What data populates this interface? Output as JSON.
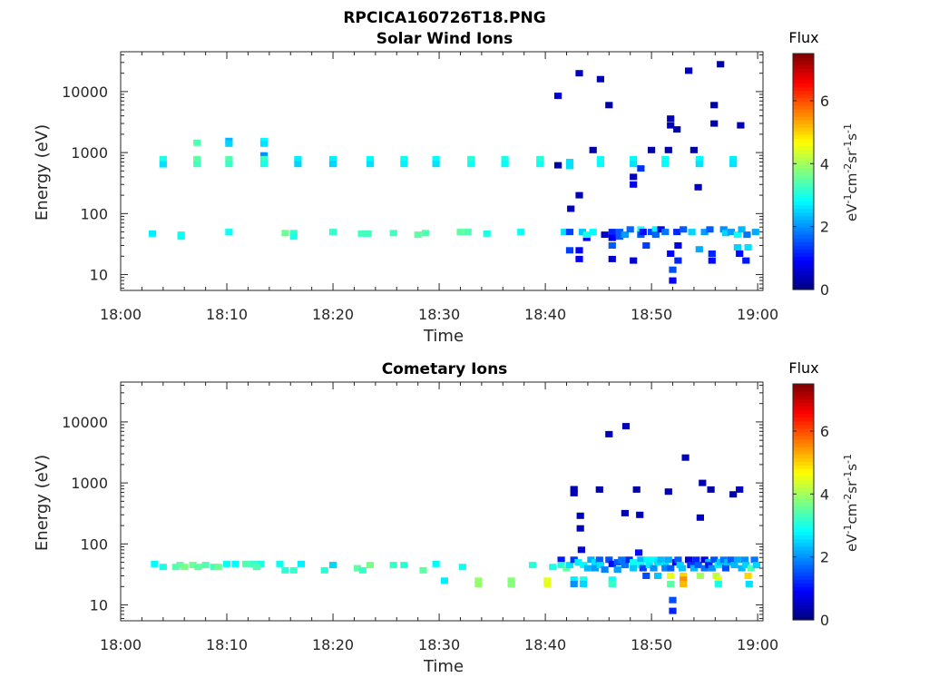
{
  "chart_data": [
    {
      "type": "heatmap",
      "title": "RPCICA160726T18.PNG",
      "subtitle": "Solar Wind Ions",
      "xlabel": "Time",
      "ylabel": "Energy (eV)",
      "x_ticks": [
        "18:00",
        "18:10",
        "18:20",
        "18:30",
        "18:40",
        "18:50",
        "19:00"
      ],
      "xlim_minutes": [
        0,
        60.5
      ],
      "y_scale": "log",
      "ylim": [
        5.5,
        45000
      ],
      "y_ticks": [
        "10",
        "100",
        "1000",
        "10000"
      ],
      "colorbar": {
        "title": "Flux",
        "label": "eV-1cm-2sr-1s-1",
        "range": [
          0,
          7.5
        ],
        "ticks": [
          "0",
          "2",
          "4",
          "6"
        ],
        "colormap": "jet"
      },
      "cells": [
        [
          3.0,
          47,
          2.7
        ],
        [
          5.7,
          45,
          2.9
        ],
        [
          5.7,
          42,
          2.9
        ],
        [
          4.0,
          780,
          3.0
        ],
        [
          4.0,
          640,
          2.6
        ],
        [
          7.2,
          1450,
          3.4
        ],
        [
          7.2,
          780,
          3.5
        ],
        [
          7.2,
          650,
          3.3
        ],
        [
          10.2,
          1550,
          2.3
        ],
        [
          10.2,
          1400,
          2.5
        ],
        [
          10.2,
          780,
          3.4
        ],
        [
          10.2,
          650,
          3.2
        ],
        [
          10.2,
          50,
          2.9
        ],
        [
          13.5,
          1550,
          2.8
        ],
        [
          13.5,
          1400,
          2.6
        ],
        [
          13.5,
          900,
          2.0
        ],
        [
          13.5,
          780,
          3.2
        ],
        [
          13.5,
          650,
          3.0
        ],
        [
          15.5,
          48,
          3.6
        ],
        [
          16.3,
          48,
          3.2
        ],
        [
          16.3,
          42,
          3.0
        ],
        [
          16.7,
          780,
          2.7
        ],
        [
          16.7,
          650,
          2.5
        ],
        [
          20.0,
          780,
          2.7
        ],
        [
          20.0,
          650,
          2.5
        ],
        [
          20.0,
          50,
          3.2
        ],
        [
          22.7,
          47,
          3.3
        ],
        [
          23.3,
          47,
          3.3
        ],
        [
          23.5,
          780,
          2.8
        ],
        [
          23.5,
          650,
          2.6
        ],
        [
          25.7,
          48,
          3.3
        ],
        [
          26.7,
          780,
          2.9
        ],
        [
          26.7,
          650,
          2.7
        ],
        [
          28.0,
          45,
          3.5
        ],
        [
          28.7,
          48,
          3.4
        ],
        [
          29.7,
          780,
          2.8
        ],
        [
          29.7,
          650,
          2.6
        ],
        [
          32.0,
          50,
          3.5
        ],
        [
          32.7,
          50,
          3.4
        ],
        [
          33.0,
          780,
          3.1
        ],
        [
          33.0,
          650,
          2.9
        ],
        [
          34.5,
          47,
          3.0
        ],
        [
          36.2,
          780,
          3.0
        ],
        [
          36.2,
          650,
          2.8
        ],
        [
          37.7,
          50,
          2.9
        ],
        [
          39.5,
          780,
          3.1
        ],
        [
          39.5,
          650,
          2.9
        ],
        [
          41.2,
          620,
          0.3
        ],
        [
          41.2,
          8500,
          0.6
        ],
        [
          41.8,
          50,
          2.6
        ],
        [
          42.3,
          50,
          1.4
        ],
        [
          42.3,
          600,
          2.6
        ],
        [
          42.3,
          700,
          2.6
        ],
        [
          42.3,
          25,
          1.4
        ],
        [
          43.2,
          20000,
          0.5
        ],
        [
          43.2,
          200,
          0.4
        ],
        [
          42.4,
          120,
          0.4
        ],
        [
          43.2,
          25,
          0.9
        ],
        [
          43.2,
          18,
          0.9
        ],
        [
          43.5,
          50,
          2.4
        ],
        [
          43.9,
          40,
          0.9
        ],
        [
          43.9,
          45,
          3.0
        ],
        [
          44.5,
          50,
          2.8
        ],
        [
          44.5,
          1100,
          0.3
        ],
        [
          45.2,
          780,
          2.9
        ],
        [
          45.2,
          650,
          2.8
        ],
        [
          45.2,
          16000,
          0.4
        ],
        [
          45.6,
          45,
          0.6
        ],
        [
          46.0,
          6000,
          0.3
        ],
        [
          46.3,
          50,
          1.2
        ],
        [
          46.3,
          40,
          0.8
        ],
        [
          46.3,
          30,
          1.6
        ],
        [
          46.3,
          18,
          0.6
        ],
        [
          47.0,
          50,
          1.6
        ],
        [
          47.0,
          42,
          1.6
        ],
        [
          47.5,
          45,
          2.1
        ],
        [
          48.0,
          55,
          1.7
        ],
        [
          48.3,
          780,
          2.8
        ],
        [
          48.3,
          650,
          2.6
        ],
        [
          48.3,
          300,
          0.8
        ],
        [
          48.3,
          400,
          0.5
        ],
        [
          48.3,
          17,
          0.6
        ],
        [
          49.0,
          55,
          3.0
        ],
        [
          49.0,
          45,
          1.6
        ],
        [
          49.0,
          550,
          1.3
        ],
        [
          49.2,
          50,
          1.0
        ],
        [
          49.5,
          30,
          1.4
        ],
        [
          50.0,
          50,
          1.5
        ],
        [
          50.0,
          1100,
          0.3
        ],
        [
          50.4,
          55,
          2.8
        ],
        [
          50.4,
          45,
          1.7
        ],
        [
          50.9,
          55,
          0.7
        ],
        [
          51.3,
          50,
          1.8
        ],
        [
          51.3,
          780,
          2.9
        ],
        [
          51.3,
          650,
          2.8
        ],
        [
          51.6,
          1100,
          0.3
        ],
        [
          51.8,
          3600,
          0.4
        ],
        [
          51.8,
          2800,
          0.4
        ],
        [
          51.8,
          22,
          0.9
        ],
        [
          52.0,
          12,
          1.5
        ],
        [
          52.0,
          8,
          0.9
        ],
        [
          52.4,
          2400,
          0.3
        ],
        [
          52.4,
          50,
          1.2
        ],
        [
          52.5,
          17,
          1.2
        ],
        [
          52.5,
          30,
          0.7
        ],
        [
          53.0,
          55,
          1.6
        ],
        [
          53.5,
          22000,
          0.5
        ],
        [
          53.8,
          50,
          2.5
        ],
        [
          54.0,
          1100,
          0.3
        ],
        [
          54.5,
          780,
          2.8
        ],
        [
          54.5,
          650,
          2.6
        ],
        [
          54.5,
          26,
          2.2
        ],
        [
          55.0,
          50,
          2.1
        ],
        [
          55.5,
          55,
          1.6
        ],
        [
          55.7,
          22,
          1.2
        ],
        [
          55.7,
          17,
          1.0
        ],
        [
          54.4,
          270,
          0.5
        ],
        [
          55.9,
          6000,
          0.3
        ],
        [
          55.9,
          3000,
          0.3
        ],
        [
          56.5,
          28000,
          0.3
        ],
        [
          56.8,
          55,
          2.0
        ],
        [
          57.0,
          48,
          2.5
        ],
        [
          57.5,
          50,
          2.1
        ],
        [
          57.7,
          780,
          2.7
        ],
        [
          57.7,
          650,
          2.6
        ],
        [
          58.1,
          45,
          2.9
        ],
        [
          58.1,
          28,
          2.5
        ],
        [
          58.5,
          55,
          2.3
        ],
        [
          58.4,
          2800,
          0.4
        ],
        [
          58.3,
          22,
          1.0
        ],
        [
          58.9,
          17,
          1.1
        ],
        [
          59.0,
          45,
          1.8
        ],
        [
          59.1,
          28,
          2.6
        ],
        [
          59.8,
          50,
          2.2
        ]
      ]
    },
    {
      "type": "heatmap",
      "title": "Cometary Ions",
      "xlabel": "Time",
      "ylabel": "Energy (eV)",
      "x_ticks": [
        "18:00",
        "18:10",
        "18:20",
        "18:30",
        "18:40",
        "18:50",
        "19:00"
      ],
      "xlim_minutes": [
        0,
        60.5
      ],
      "y_scale": "log",
      "ylim": [
        5.5,
        45000
      ],
      "y_ticks": [
        "10",
        "100",
        "1000",
        "10000"
      ],
      "colorbar": {
        "title": "Flux",
        "label": "eV-1cm-2sr-1s-1",
        "range": [
          0,
          7.5
        ],
        "ticks": [
          "0",
          "2",
          "4",
          "6"
        ],
        "colormap": "jet"
      },
      "cells": [
        [
          3.2,
          47,
          2.8
        ],
        [
          4.0,
          42,
          3.0
        ],
        [
          5.2,
          42,
          3.4
        ],
        [
          5.6,
          45,
          3.5
        ],
        [
          6.0,
          42,
          3.7
        ],
        [
          6.8,
          45,
          3.6
        ],
        [
          7.3,
          42,
          3.5
        ],
        [
          8.0,
          45,
          3.4
        ],
        [
          8.8,
          42,
          3.3
        ],
        [
          9.2,
          42,
          3.6
        ],
        [
          10.0,
          47,
          2.9
        ],
        [
          10.8,
          47,
          2.8
        ],
        [
          11.8,
          47,
          3.4
        ],
        [
          12.5,
          47,
          3.2
        ],
        [
          13.2,
          47,
          3.0
        ],
        [
          12.8,
          42,
          3.4
        ],
        [
          15.0,
          47,
          2.9
        ],
        [
          15.5,
          37,
          3.1
        ],
        [
          16.3,
          37,
          3.2
        ],
        [
          17.0,
          47,
          2.7
        ],
        [
          19.2,
          37,
          3.1
        ],
        [
          20.0,
          45,
          2.5
        ],
        [
          22.3,
          40,
          3.5
        ],
        [
          22.8,
          37,
          3.2
        ],
        [
          23.5,
          45,
          3.7
        ],
        [
          25.7,
          45,
          3.2
        ],
        [
          26.7,
          45,
          3.1
        ],
        [
          28.5,
          37,
          3.5
        ],
        [
          29.7,
          47,
          2.8
        ],
        [
          30.5,
          25,
          2.7
        ],
        [
          32.2,
          42,
          2.9
        ],
        [
          33.7,
          25,
          3.9
        ],
        [
          33.7,
          22,
          3.9
        ],
        [
          36.8,
          25,
          3.8
        ],
        [
          36.8,
          22,
          3.8
        ],
        [
          38.8,
          45,
          3.1
        ],
        [
          40.2,
          25,
          4.5
        ],
        [
          40.2,
          22,
          4.5
        ],
        [
          40.7,
          42,
          3.0
        ],
        [
          41.5,
          55,
          1.1
        ],
        [
          41.5,
          45,
          3.0
        ],
        [
          42.0,
          40,
          3.5
        ],
        [
          42.3,
          45,
          2.6
        ],
        [
          42.7,
          55,
          1.3
        ],
        [
          42.7,
          790,
          0.4
        ],
        [
          42.7,
          680,
          0.4
        ],
        [
          42.7,
          26,
          2.7
        ],
        [
          42.7,
          22,
          2.0
        ],
        [
          43.1,
          50,
          2.7
        ],
        [
          43.4,
          80,
          0.6
        ],
        [
          43.3,
          290,
          0.4
        ],
        [
          43.3,
          180,
          0.4
        ],
        [
          43.6,
          45,
          2.8
        ],
        [
          43.6,
          26,
          3.0
        ],
        [
          43.6,
          22,
          2.5
        ],
        [
          44.0,
          40,
          2.3
        ],
        [
          44.3,
          55,
          2.2
        ],
        [
          44.7,
          50,
          2.6
        ],
        [
          44.7,
          40,
          2.1
        ],
        [
          45.1,
          55,
          1.6
        ],
        [
          45.1,
          780,
          0.3
        ],
        [
          45.2,
          45,
          2.6
        ],
        [
          45.6,
          38,
          1.9
        ],
        [
          46.0,
          55,
          1.5
        ],
        [
          46.0,
          6300,
          0.4
        ],
        [
          46.3,
          47,
          1.0
        ],
        [
          46.3,
          26,
          2.9
        ],
        [
          46.3,
          22,
          3.2
        ],
        [
          46.8,
          50,
          1.6
        ],
        [
          46.8,
          38,
          2.1
        ],
        [
          47.2,
          55,
          1.8
        ],
        [
          47.5,
          45,
          1.8
        ],
        [
          47.5,
          320,
          0.4
        ],
        [
          47.6,
          8500,
          0.4
        ],
        [
          47.9,
          55,
          1.2
        ],
        [
          48.3,
          50,
          2.9
        ],
        [
          48.3,
          40,
          2.4
        ],
        [
          48.6,
          780,
          0.3
        ],
        [
          48.8,
          72,
          1.0
        ],
        [
          48.9,
          300,
          0.4
        ],
        [
          49.0,
          55,
          2.3
        ],
        [
          49.0,
          45,
          2.9
        ],
        [
          49.2,
          40,
          1.4
        ],
        [
          49.5,
          30,
          1.5
        ],
        [
          49.6,
          55,
          2.8
        ],
        [
          49.8,
          45,
          2.7
        ],
        [
          50.2,
          55,
          2.8
        ],
        [
          50.2,
          40,
          2.0
        ],
        [
          50.6,
          50,
          2.6
        ],
        [
          50.6,
          30,
          2.4
        ],
        [
          50.9,
          55,
          2.3
        ],
        [
          51.3,
          45,
          2.6
        ],
        [
          51.3,
          40,
          1.9
        ],
        [
          51.6,
          720,
          0.4
        ],
        [
          51.6,
          55,
          2.2
        ],
        [
          51.8,
          40,
          1.6
        ],
        [
          51.8,
          30,
          4.5
        ],
        [
          51.8,
          22,
          3.5
        ],
        [
          52.0,
          12,
          1.5
        ],
        [
          52.0,
          8,
          1.2
        ],
        [
          52.3,
          50,
          0.9
        ],
        [
          52.5,
          55,
          1.6
        ],
        [
          52.7,
          45,
          2.5
        ],
        [
          52.9,
          40,
          2.4
        ],
        [
          53.0,
          30,
          5.0
        ],
        [
          53.0,
          26,
          5.5
        ],
        [
          53.0,
          22,
          5.2
        ],
        [
          53.2,
          2600,
          0.4
        ],
        [
          53.5,
          55,
          0.7
        ],
        [
          53.7,
          45,
          1.3
        ],
        [
          54.0,
          40,
          2.3
        ],
        [
          54.2,
          55,
          1.2
        ],
        [
          54.4,
          45,
          1.6
        ],
        [
          54.6,
          270,
          0.5
        ],
        [
          54.6,
          30,
          4.0
        ],
        [
          54.8,
          1000,
          0.4
        ],
        [
          55.0,
          55,
          0.7
        ],
        [
          55.0,
          40,
          1.8
        ],
        [
          55.4,
          50,
          2.3
        ],
        [
          55.4,
          45,
          1.1
        ],
        [
          55.6,
          780,
          0.3
        ],
        [
          55.7,
          40,
          2.0
        ],
        [
          55.9,
          55,
          1.5
        ],
        [
          56.1,
          30,
          4.2
        ],
        [
          56.3,
          26,
          4.5
        ],
        [
          56.3,
          22,
          3.0
        ],
        [
          56.3,
          45,
          2.7
        ],
        [
          56.5,
          50,
          2.4
        ],
        [
          56.8,
          55,
          1.8
        ],
        [
          57.0,
          40,
          1.5
        ],
        [
          57.2,
          50,
          2.3
        ],
        [
          57.5,
          55,
          1.6
        ],
        [
          57.7,
          650,
          0.3
        ],
        [
          57.8,
          45,
          2.3
        ],
        [
          58.1,
          55,
          2.2
        ],
        [
          58.3,
          780,
          0.4
        ],
        [
          58.5,
          40,
          2.3
        ],
        [
          58.8,
          55,
          2.0
        ],
        [
          58.9,
          45,
          2.5
        ],
        [
          59.1,
          30,
          5.0
        ],
        [
          59.2,
          22,
          2.6
        ],
        [
          59.4,
          40,
          3.4
        ],
        [
          59.7,
          55,
          1.8
        ],
        [
          59.9,
          45,
          2.5
        ]
      ]
    }
  ]
}
